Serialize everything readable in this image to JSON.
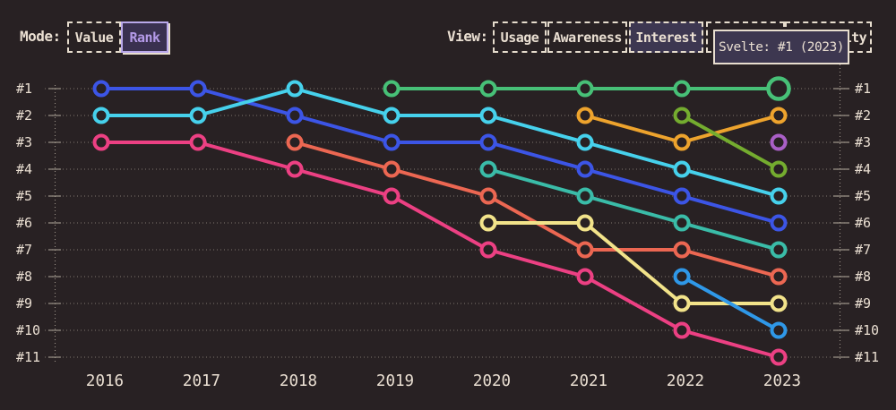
{
  "header": {
    "mode": {
      "label": "Mode:",
      "options": [
        {
          "label": "Value",
          "state": "default"
        },
        {
          "label": "Rank",
          "state": "active"
        }
      ]
    },
    "view": {
      "label": "View:",
      "options": [
        {
          "label": "Usage",
          "state": "default"
        },
        {
          "label": "Awareness",
          "state": "default"
        },
        {
          "label": "Interest",
          "state": "filled"
        },
        {
          "label": "",
          "state": "default"
        },
        {
          "label": "Positivity",
          "state": "default"
        }
      ]
    }
  },
  "tooltip": {
    "text": "Svelte: #1 (2023)"
  },
  "colors": {
    "background": "#282123",
    "text": "#eadfd2",
    "gridline": "#6e6760",
    "tick": "#9a9287",
    "accent": "#b49ae8"
  },
  "chart_data": {
    "type": "line",
    "subtype": "bump-rank-chart",
    "x_labels": [
      "2016",
      "2017",
      "2018",
      "2019",
      "2020",
      "2021",
      "2022",
      "2023"
    ],
    "rank_labels": [
      "#1",
      "#2",
      "#3",
      "#4",
      "#5",
      "#6",
      "#7",
      "#8",
      "#9",
      "#10",
      "#11"
    ],
    "x_range": [
      2016,
      2023
    ],
    "rank_range": [
      1,
      11
    ],
    "grid": "dotted-horizontal",
    "highlight": {
      "series": "Svelte",
      "year": 2023,
      "tooltip": "Svelte: #1 (2023)"
    },
    "series": [
      {
        "name": "blue",
        "color": "#3c55e6",
        "rankings": [
          [
            2016,
            1
          ],
          [
            2017,
            1
          ],
          [
            2018,
            2
          ],
          [
            2019,
            3
          ],
          [
            2020,
            3
          ],
          [
            2021,
            4
          ],
          [
            2022,
            5
          ],
          [
            2023,
            6
          ]
        ]
      },
      {
        "name": "cyan",
        "color": "#46d1ec",
        "rankings": [
          [
            2016,
            2
          ],
          [
            2017,
            2
          ],
          [
            2018,
            1
          ],
          [
            2019,
            2
          ],
          [
            2020,
            2
          ],
          [
            2021,
            3
          ],
          [
            2022,
            4
          ],
          [
            2023,
            5
          ]
        ]
      },
      {
        "name": "pink",
        "color": "#ec4083",
        "rankings": [
          [
            2016,
            3
          ],
          [
            2017,
            3
          ],
          [
            2018,
            4
          ],
          [
            2019,
            5
          ],
          [
            2020,
            7
          ],
          [
            2021,
            8
          ],
          [
            2022,
            10
          ],
          [
            2023,
            11
          ]
        ]
      },
      {
        "name": "salmon",
        "color": "#ec6752",
        "rankings": [
          [
            2018,
            3
          ],
          [
            2019,
            4
          ],
          [
            2020,
            5
          ],
          [
            2021,
            7
          ],
          [
            2022,
            7
          ],
          [
            2023,
            8
          ]
        ]
      },
      {
        "name": "Svelte",
        "color": "#47c077",
        "rankings": [
          [
            2019,
            1
          ],
          [
            2020,
            1
          ],
          [
            2021,
            1
          ],
          [
            2022,
            1
          ],
          [
            2023,
            1
          ]
        ]
      },
      {
        "name": "teal",
        "color": "#3abca8",
        "rankings": [
          [
            2020,
            4
          ],
          [
            2021,
            5
          ],
          [
            2022,
            6
          ],
          [
            2023,
            7
          ]
        ]
      },
      {
        "name": "yellow",
        "color": "#f2e38a",
        "rankings": [
          [
            2020,
            6
          ],
          [
            2021,
            6
          ],
          [
            2022,
            9
          ],
          [
            2023,
            9
          ]
        ]
      },
      {
        "name": "amber",
        "color": "#eda32d",
        "rankings": [
          [
            2021,
            2
          ],
          [
            2022,
            3
          ],
          [
            2023,
            2
          ]
        ]
      },
      {
        "name": "olive",
        "color": "#74ac2f",
        "rankings": [
          [
            2022,
            2
          ],
          [
            2023,
            4
          ]
        ]
      },
      {
        "name": "lightblue",
        "color": "#2f98e8",
        "rankings": [
          [
            2022,
            8
          ],
          [
            2023,
            10
          ]
        ]
      },
      {
        "name": "purple",
        "color": "#a95fc6",
        "rankings": [
          [
            2023,
            3
          ]
        ]
      }
    ]
  }
}
